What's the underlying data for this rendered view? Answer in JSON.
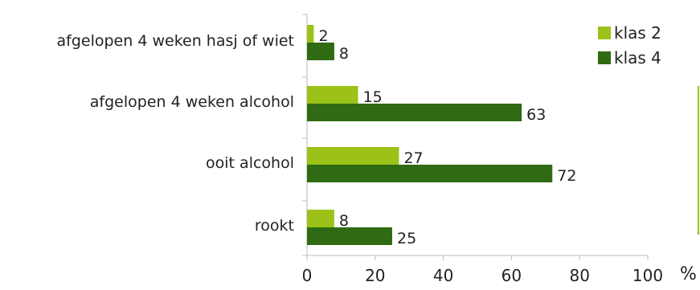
{
  "chart_data": {
    "type": "bar",
    "orientation": "horizontal",
    "categories": [
      "afgelopen 4 weken hasj of wiet",
      "afgelopen 4 weken alcohol",
      "ooit alcohol",
      "rookt"
    ],
    "series": [
      {
        "name": "klas 2",
        "color": "#9cc21a",
        "values": [
          2,
          15,
          27,
          8
        ]
      },
      {
        "name": "klas 4",
        "color": "#2e6b12",
        "values": [
          8,
          63,
          72,
          25
        ]
      }
    ],
    "xlim": [
      0,
      100
    ],
    "xticks": [
      0,
      20,
      40,
      60,
      80,
      100
    ],
    "unit": "%",
    "legend_position": "top-right",
    "grid": false
  }
}
